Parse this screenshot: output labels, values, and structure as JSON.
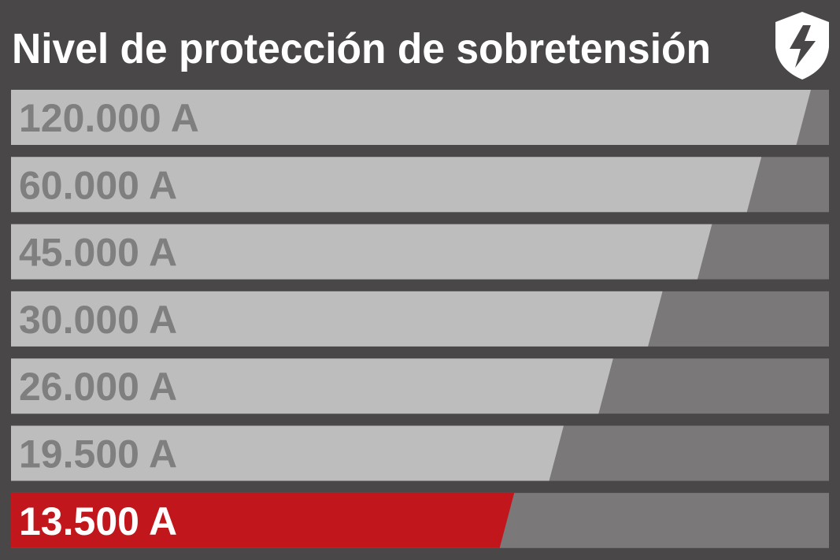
{
  "title": "Nivel de protección de sobretensión",
  "rows": [
    "120.000 A",
    "60.000 A",
    "45.000 A",
    "30.000 A",
    "26.000 A",
    "19.500 A",
    "13.500 A"
  ]
}
